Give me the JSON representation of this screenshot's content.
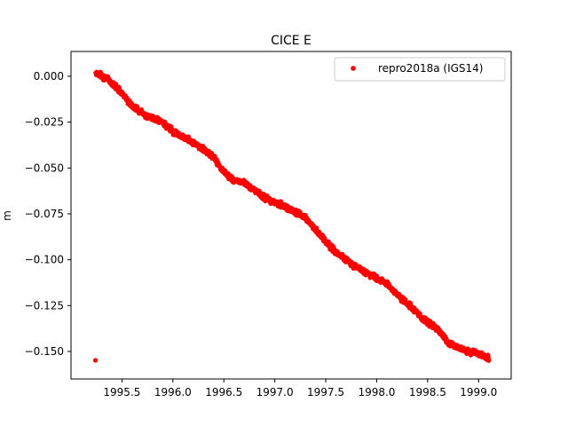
{
  "chart_data": {
    "type": "scatter",
    "title": "CICE E",
    "xlabel": "",
    "ylabel": "m",
    "xlim": [
      1995.0,
      1999.32
    ],
    "ylim": [
      -0.165,
      0.0135
    ],
    "x_ticks": [
      1995.5,
      1996.0,
      1996.5,
      1997.0,
      1997.5,
      1998.0,
      1998.5,
      1999.0
    ],
    "x_tick_labels": [
      "1995.5",
      "1996.0",
      "1996.5",
      "1997.0",
      "1997.5",
      "1998.0",
      "1998.5",
      "1999.0"
    ],
    "y_ticks": [
      0.0,
      -0.025,
      -0.05,
      -0.075,
      -0.1,
      -0.125,
      -0.15
    ],
    "y_tick_labels": [
      "0.000",
      "−0.025",
      "−0.050",
      "−0.075",
      "−0.100",
      "−0.125",
      "−0.150"
    ],
    "grid": false,
    "legend_position": "top-right",
    "series": [
      {
        "name": "repro2018a (IGS14)",
        "color": "#ff0000",
        "marker": "circle",
        "trend_points": [
          {
            "x": 1995.24,
            "y": 0.002
          },
          {
            "x": 1995.35,
            "y": -0.001
          },
          {
            "x": 1995.5,
            "y": -0.009
          },
          {
            "x": 1995.6,
            "y": -0.016
          },
          {
            "x": 1995.7,
            "y": -0.02
          },
          {
            "x": 1995.8,
            "y": -0.023
          },
          {
            "x": 1995.9,
            "y": -0.025
          },
          {
            "x": 1996.0,
            "y": -0.03
          },
          {
            "x": 1996.1,
            "y": -0.033
          },
          {
            "x": 1996.2,
            "y": -0.036
          },
          {
            "x": 1996.3,
            "y": -0.04
          },
          {
            "x": 1996.4,
            "y": -0.044
          },
          {
            "x": 1996.5,
            "y": -0.052
          },
          {
            "x": 1996.6,
            "y": -0.057
          },
          {
            "x": 1996.7,
            "y": -0.058
          },
          {
            "x": 1996.8,
            "y": -0.062
          },
          {
            "x": 1996.9,
            "y": -0.066
          },
          {
            "x": 1997.0,
            "y": -0.069
          },
          {
            "x": 1997.1,
            "y": -0.071
          },
          {
            "x": 1997.2,
            "y": -0.074
          },
          {
            "x": 1997.3,
            "y": -0.077
          },
          {
            "x": 1997.4,
            "y": -0.084
          },
          {
            "x": 1997.5,
            "y": -0.09
          },
          {
            "x": 1997.6,
            "y": -0.096
          },
          {
            "x": 1997.7,
            "y": -0.1
          },
          {
            "x": 1997.8,
            "y": -0.104
          },
          {
            "x": 1997.9,
            "y": -0.107
          },
          {
            "x": 1998.0,
            "y": -0.11
          },
          {
            "x": 1998.1,
            "y": -0.113
          },
          {
            "x": 1998.2,
            "y": -0.119
          },
          {
            "x": 1998.3,
            "y": -0.124
          },
          {
            "x": 1998.4,
            "y": -0.129
          },
          {
            "x": 1998.5,
            "y": -0.134
          },
          {
            "x": 1998.6,
            "y": -0.138
          },
          {
            "x": 1998.7,
            "y": -0.145
          },
          {
            "x": 1998.8,
            "y": -0.148
          },
          {
            "x": 1998.9,
            "y": -0.15
          },
          {
            "x": 1999.0,
            "y": -0.151
          },
          {
            "x": 1999.1,
            "y": -0.154
          }
        ]
      }
    ]
  }
}
